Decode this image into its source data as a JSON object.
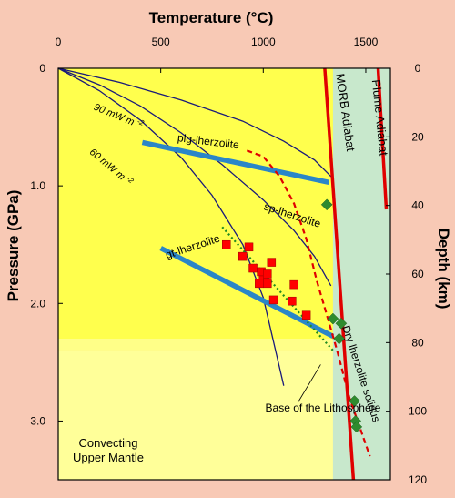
{
  "chart_data": {
    "type": "scatter",
    "title": "",
    "xlabel": "Temperature (°C)",
    "ylabel_left": "Pressure (GPa)",
    "ylabel_right": "Depth (km)",
    "xlim": [
      0,
      1620
    ],
    "ylim_pressure": [
      0,
      3.5
    ],
    "ylim_depth": [
      0,
      120
    ],
    "x_ticks": [
      0,
      500,
      1000,
      1500
    ],
    "x_tick_labels": [
      "0",
      "500",
      "1000",
      "1500"
    ],
    "pressure_ticks": [
      0,
      1.0,
      2.0,
      3.0
    ],
    "pressure_tick_labels": [
      "0",
      "1.0",
      "2.0",
      "3.0"
    ],
    "depth_ticks": [
      0,
      20,
      40,
      60,
      80,
      100,
      120
    ],
    "depth_tick_labels": [
      "0",
      "20",
      "40",
      "60",
      "80",
      "100",
      "120"
    ],
    "regions": [
      {
        "name": "lithosphere",
        "color": "#ffff4d",
        "p_range": [
          0,
          2.3
        ]
      },
      {
        "name": "transition",
        "color": "#ffff88",
        "p_range": [
          2.3,
          2.4
        ]
      },
      {
        "name": "convecting-mantle",
        "color": "#ffff99",
        "p_range": [
          2.4,
          3.5
        ],
        "label_lines": [
          "Convecting",
          "Upper Mantle"
        ]
      },
      {
        "name": "adiabat-band",
        "color": "#c8e8cc",
        "t_range": [
          1340,
          1620
        ]
      }
    ],
    "geotherms": [
      {
        "label": "90 mW m",
        "superscript": "-2",
        "color": "#1a1a7a",
        "points": [
          [
            0,
            0
          ],
          [
            200,
            0.14
          ],
          [
            400,
            0.32
          ],
          [
            600,
            0.55
          ],
          [
            800,
            0.82
          ],
          [
            1000,
            1.12
          ],
          [
            1150,
            1.38
          ],
          [
            1250,
            1.6
          ],
          [
            1330,
            1.85
          ]
        ]
      },
      {
        "label": "60 mW m",
        "superscript": "-2",
        "color": "#1a1a7a",
        "points": [
          [
            0,
            0
          ],
          [
            200,
            0.19
          ],
          [
            400,
            0.44
          ],
          [
            600,
            0.76
          ],
          [
            750,
            1.08
          ],
          [
            900,
            1.5
          ],
          [
            1000,
            1.95
          ],
          [
            1060,
            2.4
          ],
          [
            1100,
            2.7
          ]
        ]
      },
      {
        "label": "",
        "superscript": "",
        "color": "#1a1a7a",
        "points": [
          [
            0,
            0
          ],
          [
            300,
            0.12
          ],
          [
            600,
            0.27
          ],
          [
            900,
            0.45
          ],
          [
            1100,
            0.62
          ],
          [
            1250,
            0.78
          ],
          [
            1330,
            0.92
          ]
        ]
      }
    ],
    "phase_boundaries": [
      {
        "label": "plg-lherzolite",
        "color": "#2a86c8",
        "points": [
          [
            410,
            0.63
          ],
          [
            1320,
            0.97
          ]
        ]
      },
      {
        "label": "gt-lherzolite",
        "color": "#2a86c8",
        "points": [
          [
            500,
            1.53
          ],
          [
            1340,
            2.28
          ]
        ]
      }
    ],
    "adiabats": [
      {
        "label": "MORB Adiabat",
        "color": "#e00000",
        "points": [
          [
            1300,
            0
          ],
          [
            1440,
            3.5
          ]
        ]
      },
      {
        "label": "Plume Adiabat",
        "color": "#e00000",
        "points": [
          [
            1560,
            0
          ],
          [
            1600,
            1.2
          ]
        ]
      }
    ],
    "solidus": {
      "label": "Dry lherzolite solidus",
      "color": "#e00000",
      "points": [
        [
          920,
          0.7
        ],
        [
          1000,
          0.75
        ],
        [
          1080,
          0.92
        ],
        [
          1150,
          1.15
        ],
        [
          1210,
          1.45
        ],
        [
          1260,
          1.8
        ],
        [
          1310,
          2.1
        ],
        [
          1360,
          2.4
        ],
        [
          1420,
          2.8
        ],
        [
          1500,
          3.2
        ],
        [
          1520,
          3.3
        ]
      ]
    },
    "base_lithosphere_trend": {
      "color": "#208a20",
      "points": [
        [
          800,
          1.35
        ],
        [
          1340,
          2.4
        ]
      ]
    },
    "series": [
      {
        "name": "",
        "marker": "square",
        "color": "#ff0000",
        "points": [
          [
            820,
            1.5
          ],
          [
            900,
            1.6
          ],
          [
            930,
            1.52
          ],
          [
            950,
            1.7
          ],
          [
            990,
            1.73
          ],
          [
            1000,
            1.8
          ],
          [
            1020,
            1.75
          ],
          [
            1040,
            1.65
          ],
          [
            980,
            1.83
          ],
          [
            1020,
            1.83
          ],
          [
            1050,
            1.97
          ],
          [
            1150,
            1.84
          ],
          [
            1140,
            1.98
          ],
          [
            1210,
            2.1
          ]
        ]
      },
      {
        "name": "",
        "marker": "diamond",
        "color": "#2e8b2e",
        "points": [
          [
            1310,
            1.16
          ],
          [
            1340,
            2.13
          ],
          [
            1380,
            2.17
          ],
          [
            1370,
            2.3
          ],
          [
            1445,
            2.83
          ],
          [
            1450,
            3.0
          ],
          [
            1455,
            3.05
          ]
        ]
      }
    ],
    "annotations": [
      {
        "text": "sp-lherzolite",
        "at": [
          1000,
          1.2
        ],
        "rotate": 18
      },
      {
        "text": "Base of the Lithosphere",
        "at": [
          1010,
          2.92
        ],
        "leader_to": [
          1280,
          2.52
        ]
      }
    ]
  }
}
